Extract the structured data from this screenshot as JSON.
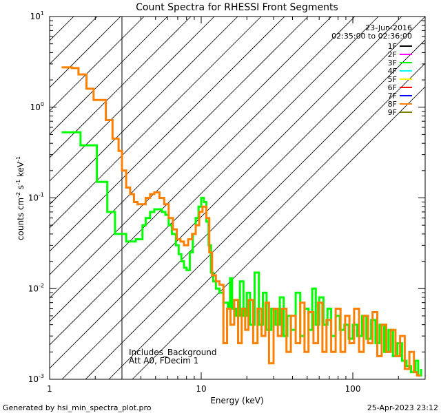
{
  "chart_data": {
    "type": "line",
    "title": "Count Spectra for RHESSI Front Segments",
    "xlabel": "Energy (keV)",
    "ylabel_base": "counts cm",
    "ylabel_sup1": "-2",
    "ylabel_mid": " s",
    "ylabel_sup2": "-1",
    "ylabel_end": " keV",
    "ylabel_sup3": "-1",
    "xscale": "log",
    "yscale": "log",
    "xlim": [
      1,
      300
    ],
    "ylim": [
      0.001,
      10
    ],
    "x_ticks": [
      {
        "value": 1,
        "label": "1"
      },
      {
        "value": 10,
        "label": "10"
      },
      {
        "value": 100,
        "label": "100"
      }
    ],
    "y_ticks": [
      {
        "value": 0.001,
        "mantissa": "10",
        "exponent": "-3"
      },
      {
        "value": 0.01,
        "mantissa": "10",
        "exponent": "-2"
      },
      {
        "value": 0.1,
        "mantissa": "10",
        "exponent": "-1"
      },
      {
        "value": 1,
        "mantissa": "10",
        "exponent": "0"
      },
      {
        "value": 10,
        "mantissa": "10",
        "exponent": "1"
      }
    ],
    "hatched_region": {
      "x_from": 1,
      "x_to": 3
    },
    "date": "23-Jun-2016",
    "time_range": "02:35:00 to 02:36:00",
    "legend": [
      {
        "label": "1F",
        "color": "#000000"
      },
      {
        "label": "2F",
        "color": "#ff00ff"
      },
      {
        "label": "3F",
        "color": "#00ff00"
      },
      {
        "label": "4F",
        "color": "#00ffff"
      },
      {
        "label": "5F",
        "color": "#ffff00"
      },
      {
        "label": "6F",
        "color": "#ff0000"
      },
      {
        "label": "7F",
        "color": "#0000ff"
      },
      {
        "label": "8F",
        "color": "#ff8000"
      },
      {
        "label": "9F",
        "color": "#808000"
      }
    ],
    "legend_position": "top-right",
    "annotation_lines": [
      "Includes_Background",
      "Att A0, FDecim 1"
    ],
    "series": [
      {
        "name": "3F",
        "color": "#00ff00",
        "points": [
          [
            1.2,
            0.53
          ],
          [
            1.4,
            0.53
          ],
          [
            1.6,
            0.38
          ],
          [
            1.9,
            0.38
          ],
          [
            2.05,
            0.15
          ],
          [
            2.25,
            0.15
          ],
          [
            2.4,
            0.07
          ],
          [
            2.6,
            0.07
          ],
          [
            2.7,
            0.04
          ],
          [
            3.0,
            0.04
          ],
          [
            3.2,
            0.033
          ],
          [
            3.5,
            0.033
          ],
          [
            3.7,
            0.035
          ],
          [
            3.9,
            0.035
          ],
          [
            4.1,
            0.05
          ],
          [
            4.3,
            0.06
          ],
          [
            4.6,
            0.07
          ],
          [
            4.9,
            0.075
          ],
          [
            5.2,
            0.075
          ],
          [
            5.5,
            0.07
          ],
          [
            5.8,
            0.065
          ],
          [
            6.1,
            0.05
          ],
          [
            6.4,
            0.04
          ],
          [
            6.8,
            0.03
          ],
          [
            7.1,
            0.024
          ],
          [
            7.4,
            0.02
          ],
          [
            7.7,
            0.017
          ],
          [
            8.0,
            0.016
          ],
          [
            8.4,
            0.025
          ],
          [
            8.8,
            0.04
          ],
          [
            9.2,
            0.06
          ],
          [
            9.6,
            0.08
          ],
          [
            10.0,
            0.1
          ],
          [
            10.4,
            0.09
          ],
          [
            10.8,
            0.055
          ],
          [
            11.2,
            0.03
          ],
          [
            11.6,
            0.015
          ],
          [
            12.0,
            0.012
          ],
          [
            12.5,
            0.01
          ],
          [
            13.2,
            0.009
          ],
          [
            14.0,
            0.007
          ],
          [
            15.0,
            0.006
          ],
          [
            15.5,
            0.013
          ],
          [
            16.0,
            0.006
          ],
          [
            17.0,
            0.005
          ],
          [
            18.0,
            0.012
          ],
          [
            19.0,
            0.005
          ],
          [
            20.0,
            0.009
          ],
          [
            21.0,
            0.004
          ],
          [
            22.5,
            0.015
          ],
          [
            24.0,
            0.004
          ],
          [
            25.5,
            0.009
          ],
          [
            27.0,
            0.0035
          ],
          [
            29.0,
            0.006
          ],
          [
            31.0,
            0.004
          ],
          [
            33.0,
            0.008
          ],
          [
            35.0,
            0.003
          ],
          [
            37.0,
            0.005
          ],
          [
            39.0,
            0.0035
          ],
          [
            42.0,
            0.009
          ],
          [
            45.0,
            0.003
          ],
          [
            48.0,
            0.006
          ],
          [
            51.0,
            0.0035
          ],
          [
            54.0,
            0.01
          ],
          [
            57.0,
            0.004
          ],
          [
            60.0,
            0.008
          ],
          [
            64.0,
            0.004
          ],
          [
            68.0,
            0.006
          ],
          [
            72.0,
            0.003
          ],
          [
            77.0,
            0.005
          ],
          [
            82.0,
            0.0035
          ],
          [
            88.0,
            0.004
          ],
          [
            94.0,
            0.0028
          ],
          [
            100.0,
            0.004
          ],
          [
            107.0,
            0.003
          ],
          [
            115.0,
            0.005
          ],
          [
            123.0,
            0.0028
          ],
          [
            132.0,
            0.0045
          ],
          [
            141.0,
            0.0025
          ],
          [
            150.0,
            0.004
          ],
          [
            161.0,
            0.002
          ],
          [
            172.0,
            0.0035
          ],
          [
            184.0,
            0.0018
          ],
          [
            197.0,
            0.0025
          ],
          [
            211.0,
            0.0016
          ],
          [
            226.0,
            0.0014
          ],
          [
            242.0,
            0.0012
          ],
          [
            259.0,
            0.0016
          ],
          [
            270.0,
            0.0011
          ],
          [
            282.0,
            0.0013
          ]
        ]
      },
      {
        "name": "8F",
        "color": "#ff8000",
        "points": [
          [
            1.2,
            2.75
          ],
          [
            1.4,
            2.7
          ],
          [
            1.55,
            2.3
          ],
          [
            1.75,
            1.6
          ],
          [
            1.95,
            1.2
          ],
          [
            2.15,
            1.2
          ],
          [
            2.35,
            0.72
          ],
          [
            2.6,
            0.45
          ],
          [
            2.85,
            0.33
          ],
          [
            3.0,
            0.2
          ],
          [
            3.2,
            0.13
          ],
          [
            3.4,
            0.11
          ],
          [
            3.6,
            0.09
          ],
          [
            3.8,
            0.085
          ],
          [
            4.0,
            0.085
          ],
          [
            4.3,
            0.1
          ],
          [
            4.6,
            0.11
          ],
          [
            4.9,
            0.115
          ],
          [
            5.3,
            0.1
          ],
          [
            5.7,
            0.085
          ],
          [
            6.1,
            0.06
          ],
          [
            6.5,
            0.045
          ],
          [
            6.9,
            0.035
          ],
          [
            7.3,
            0.033
          ],
          [
            7.7,
            0.03
          ],
          [
            8.2,
            0.035
          ],
          [
            8.7,
            0.04
          ],
          [
            9.2,
            0.05
          ],
          [
            9.7,
            0.07
          ],
          [
            10.2,
            0.08
          ],
          [
            10.8,
            0.06
          ],
          [
            11.3,
            0.025
          ],
          [
            11.8,
            0.014
          ],
          [
            12.5,
            0.012
          ],
          [
            13.2,
            0.011
          ],
          [
            14.0,
            0.0025
          ],
          [
            14.8,
            0.006
          ],
          [
            15.6,
            0.004
          ],
          [
            16.5,
            0.0075
          ],
          [
            17.5,
            0.0025
          ],
          [
            18.5,
            0.006
          ],
          [
            19.5,
            0.0035
          ],
          [
            20.5,
            0.0075
          ],
          [
            22.0,
            0.0025
          ],
          [
            23.5,
            0.006
          ],
          [
            25.0,
            0.003
          ],
          [
            26.5,
            0.007
          ],
          [
            28.0,
            0.0015
          ],
          [
            30.0,
            0.006
          ],
          [
            32.0,
            0.003
          ],
          [
            34.0,
            0.006
          ],
          [
            36.5,
            0.002
          ],
          [
            39.0,
            0.005
          ],
          [
            42.0,
            0.0025
          ],
          [
            45.0,
            0.007
          ],
          [
            48.0,
            0.002
          ],
          [
            51.0,
            0.0055
          ],
          [
            55.0,
            0.0025
          ],
          [
            59.0,
            0.007
          ],
          [
            63.0,
            0.002
          ],
          [
            67.0,
            0.0045
          ],
          [
            72.0,
            0.002
          ],
          [
            77.0,
            0.006
          ],
          [
            83.0,
            0.002
          ],
          [
            89.0,
            0.005
          ],
          [
            95.0,
            0.0025
          ],
          [
            102.0,
            0.006
          ],
          [
            110.0,
            0.002
          ],
          [
            118.0,
            0.005
          ],
          [
            126.0,
            0.0025
          ],
          [
            135.0,
            0.0055
          ],
          [
            145.0,
            0.0018
          ],
          [
            155.0,
            0.004
          ],
          [
            166.0,
            0.002
          ],
          [
            178.0,
            0.0035
          ],
          [
            191.0,
            0.0018
          ],
          [
            205.0,
            0.003
          ],
          [
            220.0,
            0.0013
          ],
          [
            236.0,
            0.002
          ],
          [
            253.0,
            0.0012
          ],
          [
            265.0,
            0.0011
          ],
          [
            280.0,
            0.0011
          ]
        ]
      }
    ]
  },
  "footer": {
    "generator": "Generated by hsi_min_spectra_plot.pro",
    "timestamp": "25-Apr-2023 23:12"
  }
}
